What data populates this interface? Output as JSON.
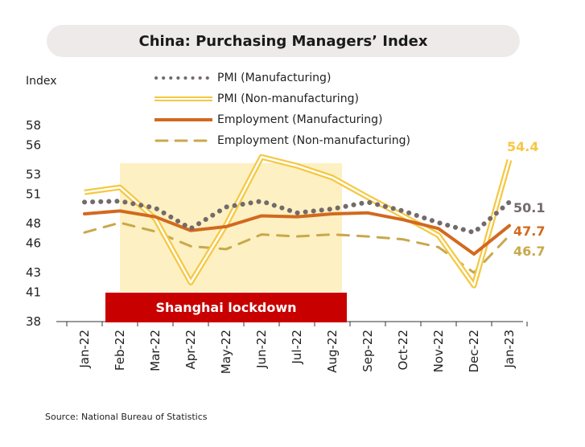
{
  "title": "China: Purchasing Managers’ Index",
  "source": "Source: National Bureau of Statistics",
  "colors": {
    "pmi_mfg": "#736a6a",
    "pmi_nonmfg": "#f5c842",
    "emp_mfg": "#d2691e",
    "emp_nonmfg": "#c9a84c",
    "lockdown_shade": "#fdf0c2",
    "lockdown_banner": "#c90000",
    "title_bg": "#eeeaea"
  },
  "chart_data": {
    "type": "line",
    "title": "China: Purchasing Managers’ Index",
    "ylabel": "Index",
    "xlabel": "",
    "ylim": [
      38,
      58
    ],
    "yticks": [
      "58",
      "56",
      "53",
      "51",
      "48",
      "46",
      "43",
      "41",
      "38"
    ],
    "categories": [
      "Jan-22",
      "Feb-22",
      "Mar-22",
      "Apr-22",
      "May-22",
      "Jun-22",
      "Jul-22",
      "Aug-22",
      "Sep-22",
      "Oct-22",
      "Nov-22",
      "Dec-22",
      "Jan-23"
    ],
    "series": [
      {
        "name": "PMI (Manufacturing)",
        "style": "dotted",
        "color": "#736a6a",
        "values": [
          50.1,
          50.2,
          49.5,
          47.4,
          49.6,
          50.2,
          49.0,
          49.4,
          50.1,
          49.2,
          48.0,
          47.0,
          50.1
        ]
      },
      {
        "name": "PMI (Non-manufacturing)",
        "style": "double",
        "color": "#f5c842",
        "values": [
          51.1,
          51.6,
          48.4,
          41.9,
          47.8,
          54.7,
          53.8,
          52.6,
          50.6,
          48.7,
          46.7,
          41.6,
          54.4
        ]
      },
      {
        "name": "Employment (Manufacturing)",
        "style": "solid",
        "color": "#d2691e",
        "values": [
          48.9,
          49.2,
          48.6,
          47.2,
          47.6,
          48.7,
          48.6,
          48.9,
          49.0,
          48.3,
          47.4,
          44.8,
          47.7
        ]
      },
      {
        "name": "Employment (Non-manufacturing)",
        "style": "dashed",
        "color": "#c9a84c",
        "values": [
          47.0,
          48.0,
          47.1,
          45.6,
          45.3,
          46.8,
          46.6,
          46.8,
          46.6,
          46.3,
          45.5,
          42.9,
          46.7
        ]
      }
    ],
    "end_labels": [
      "50.1",
      "54.4",
      "47.7",
      "46.7"
    ],
    "annotations": [
      {
        "text": "Shanghai lockdown",
        "from": "Feb-22",
        "to": "Aug-22"
      }
    ],
    "grid": false,
    "legend_position": "top"
  }
}
